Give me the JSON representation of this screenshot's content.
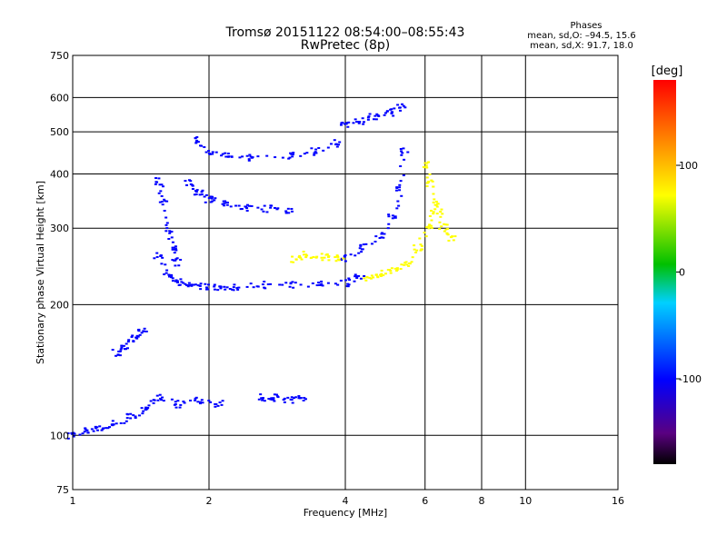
{
  "chart_data": {
    "type": "scatter",
    "title": "Tromsø 20151122 08:54:00–08:55:43",
    "subtitle": "RwPretec (8p)",
    "xlabel": "Frequency [MHz]",
    "ylabel": "Stationary phase Virtual Height [km]",
    "x_scale": "log",
    "y_scale": "log",
    "xlim": [
      1,
      16
    ],
    "ylim": [
      75,
      750
    ],
    "x_ticks": [
      1,
      2,
      4,
      6,
      8,
      10,
      16
    ],
    "y_ticks": [
      75,
      100,
      200,
      300,
      400,
      500,
      600,
      750
    ],
    "grid": true,
    "phase_header": "Phases",
    "phase_stats": [
      "mean, sd,O: –94.5, 15.6",
      "mean, sd,X:  91.7, 18.0"
    ],
    "colorbar": {
      "title": "[deg]",
      "ticks": [
        100,
        0,
        -100
      ],
      "range": [
        -180,
        180
      ],
      "palette": [
        "#000000",
        "#5a0080",
        "#0000ff",
        "#00d0ff",
        "#00c000",
        "#ffff00",
        "#ff8000",
        "#ff0000"
      ]
    },
    "series": [
      {
        "color_deg": -100,
        "segments": [
          {
            "x": [
              1.55,
              1.62,
              1.7,
              1.8,
              1.95,
              2.1,
              2.3,
              2.6,
              3.0,
              3.5,
              4.0,
              4.3
            ],
            "y": [
              260,
              235,
              225,
              222,
              220,
              218,
              220,
              222,
              223,
              222,
              224,
              232
            ]
          },
          {
            "x": [
              1.55,
              1.58,
              1.62,
              1.66,
              1.7
            ],
            "y": [
              385,
              350,
              300,
              270,
              250
            ]
          },
          {
            "x": [
              1.8,
              1.9,
              2.0,
              2.2,
              2.4,
              2.7,
              3.0
            ],
            "y": [
              380,
              360,
              350,
              340,
              335,
              332,
              330
            ]
          },
          {
            "x": [
              1.85,
              2.0,
              2.2,
              2.5,
              3.0,
              3.4,
              3.8
            ],
            "y": [
              480,
              450,
              440,
              435,
              440,
              450,
              470
            ]
          },
          {
            "x": [
              4.0,
              4.3,
              4.6,
              5.0,
              5.3
            ],
            "y": [
              520,
              530,
              540,
              555,
              570
            ]
          },
          {
            "x": [
              4.0,
              4.4,
              4.8,
              5.1,
              5.3,
              5.4
            ],
            "y": [
              255,
              270,
              290,
              320,
              370,
              450
            ]
          },
          {
            "x": [
              1.0,
              1.08,
              1.15,
              1.25,
              1.35,
              1.45,
              1.55,
              1.7,
              1.9,
              2.1
            ],
            "y": [
              100,
              102,
              104,
              106,
              110,
              115,
              122,
              118,
              120,
              118
            ]
          },
          {
            "x": [
              1.25,
              1.3,
              1.38,
              1.43
            ],
            "y": [
              155,
              160,
              168,
              175
            ]
          },
          {
            "x": [
              2.6,
              2.8,
              3.0,
              3.2
            ],
            "y": [
              122,
              122,
              121,
              122
            ]
          }
        ]
      },
      {
        "color_deg": 100,
        "segments": [
          {
            "x": [
              4.5,
              4.8,
              5.1,
              5.5,
              5.8,
              6.1,
              6.3
            ],
            "y": [
              230,
              235,
              240,
              250,
              270,
              300,
              340
            ]
          },
          {
            "x": [
              6.0,
              6.2,
              6.4,
              6.6,
              6.9
            ],
            "y": [
              420,
              380,
              330,
              300,
              285
            ]
          },
          {
            "x": [
              3.1,
              3.3,
              3.6,
              3.9
            ],
            "y": [
              255,
              260,
              258,
              255
            ]
          }
        ]
      }
    ]
  }
}
